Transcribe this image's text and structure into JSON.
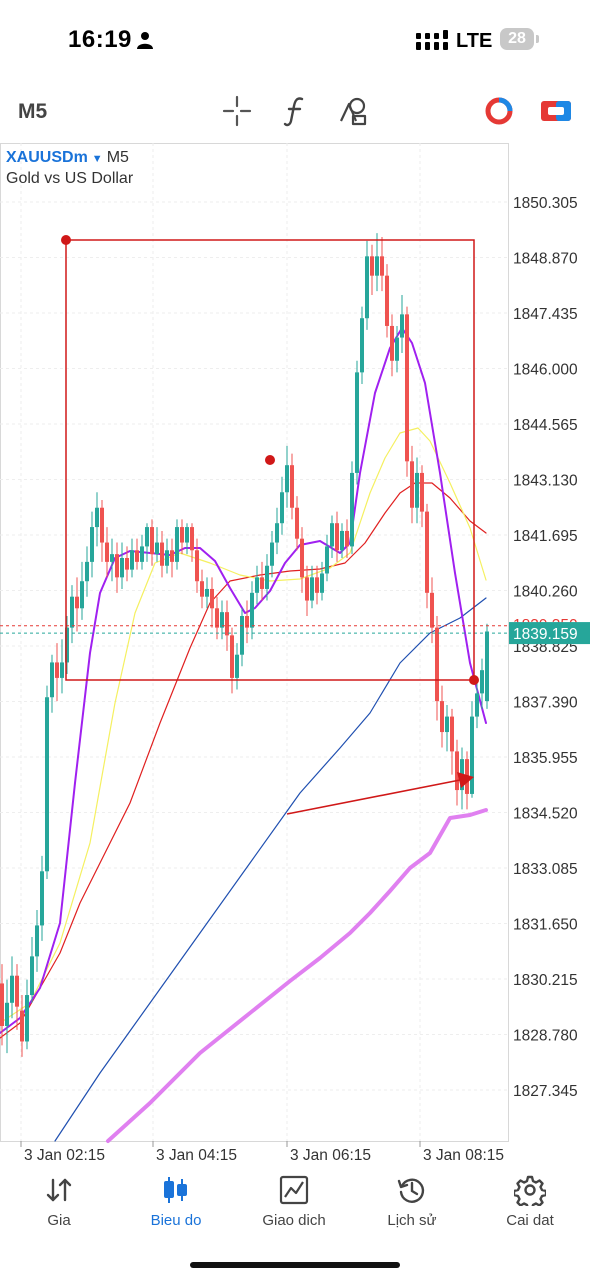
{
  "status_bar": {
    "time": "16:19",
    "network": "LTE",
    "battery": "28"
  },
  "toolbar": {
    "timeframe": "M5"
  },
  "symbol": {
    "name": "XAUUSDm",
    "timeframe": "M5",
    "description": "Gold vs US Dollar"
  },
  "chart_data": {
    "type": "candlestick",
    "price_axis_labels": [
      "1850.305",
      "1848.870",
      "1847.435",
      "1846.000",
      "1844.565",
      "1843.130",
      "1841.695",
      "1840.260",
      "1838.825",
      "1837.390",
      "1835.955",
      "1834.520",
      "1833.085",
      "1831.650",
      "1830.215",
      "1828.780",
      "1827.345"
    ],
    "time_axis_labels": [
      "3 Jan 02:15",
      "3 Jan 04:15",
      "3 Jan 06:15",
      "3 Jan 08:15"
    ],
    "current_price": "1839.159",
    "partial_level_label": "1839.350",
    "colors": {
      "bull": "#26a69a",
      "bear": "#ef5350",
      "rect": "#d01818",
      "ma_purple": "#a020f0",
      "ma_yellow": "#f5f060",
      "ma_red": "#e02020",
      "ma_blue": "#1f4fb0",
      "ma_violet": "#e080f0",
      "price_tag": "#26a69a"
    }
  },
  "bottom_nav": [
    {
      "label": "Gia",
      "icon": "sort-arrows-icon"
    },
    {
      "label": "Bieu do",
      "icon": "candlestick-icon",
      "active": true
    },
    {
      "label": "Giao dich",
      "icon": "trend-chart-icon"
    },
    {
      "label": "Lịch sử",
      "icon": "history-icon"
    },
    {
      "label": "Cai dat",
      "icon": "gear-icon"
    }
  ]
}
